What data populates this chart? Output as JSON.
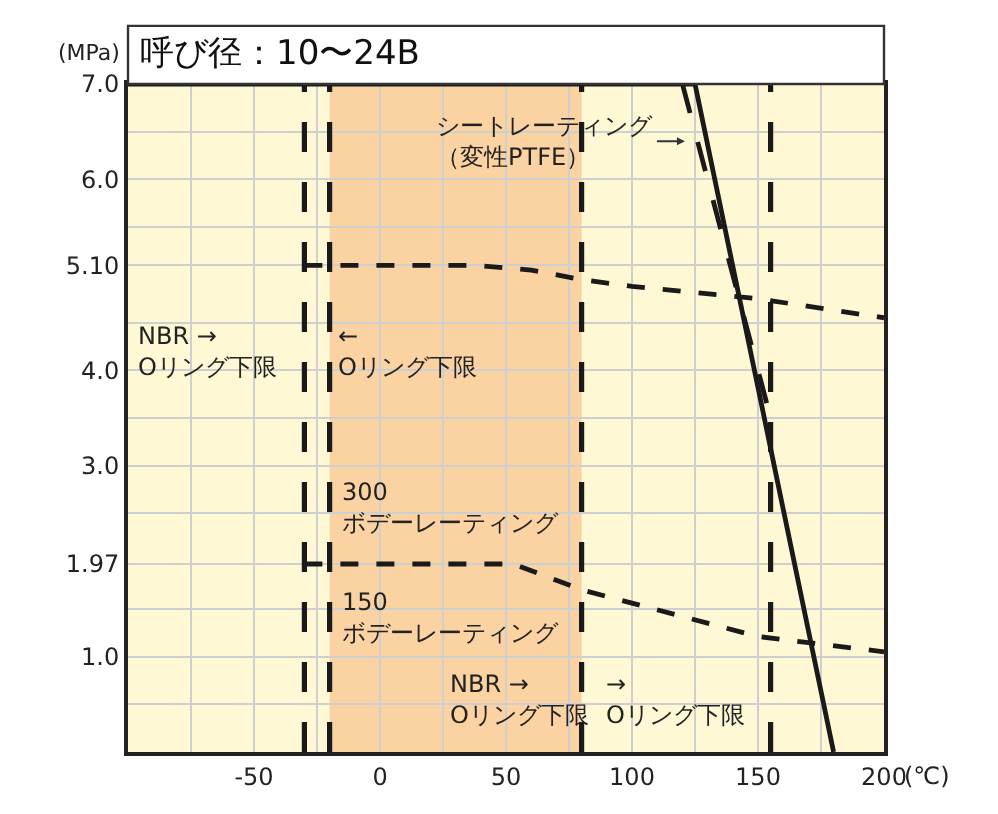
{
  "chart_data": {
    "type": "line",
    "title": "呼び径：10〜24B",
    "ylabel": "(MPa)",
    "xlabel": "(℃)",
    "xlim": [
      -100,
      200
    ],
    "ylim": [
      0,
      7
    ],
    "xticks": [
      {
        "value": -75,
        "label": null
      },
      -50,
      {
        "value": -25,
        "label": null
      },
      0,
      {
        "value": 25,
        "label": null
      },
      50,
      {
        "value": 75,
        "label": null
      },
      100,
      {
        "value": 125,
        "label": null
      },
      150,
      {
        "value": 175,
        "label": null
      },
      200
    ],
    "yticks": [
      {
        "value": 0.5,
        "label": null
      },
      {
        "value": 1,
        "label": "1.0"
      },
      {
        "value": 1.5,
        "label": null
      },
      1.97,
      {
        "value": 2.5,
        "label": null
      },
      {
        "value": 3,
        "label": "3.0"
      },
      {
        "value": 3.5,
        "label": null
      },
      {
        "value": 4,
        "label": "4.0"
      },
      {
        "value": 4.5,
        "label": null
      },
      {
        "value": 5.1,
        "label": "5.10"
      },
      {
        "value": 5.5,
        "label": null
      },
      {
        "value": 6,
        "label": "6.0"
      },
      {
        "value": 6.5,
        "label": null
      },
      {
        "value": 7,
        "label": "7.0"
      }
    ],
    "bands": [
      {
        "axis": "x",
        "from": -20,
        "to": 80,
        "color": "#fbd3a3"
      }
    ],
    "grid": true,
    "marker": "none",
    "series": [
      {
        "color": "#1a1a1a",
        "line_style": "solid",
        "x": [
          -100,
          125,
          180
        ],
        "values": [
          7,
          7,
          0
        ]
      },
      {
        "color": "#1a1a1a",
        "line_style": "dashed",
        "x": [
          120,
          155
        ],
        "values": [
          7,
          3.5
        ]
      },
      {
        "color": "#1a1a1a",
        "line_style": "dotted",
        "x": [
          -30,
          38,
          60,
          80,
          100,
          150,
          200
        ],
        "values": [
          5.1,
          5.1,
          5.05,
          4.95,
          4.88,
          4.75,
          4.55
        ]
      },
      {
        "color": "#1a1a1a",
        "line_style": "dotted",
        "x": [
          -30,
          53,
          80,
          150,
          200
        ],
        "values": [
          1.97,
          1.97,
          1.7,
          1.21,
          1.05
        ]
      }
    ],
    "ref_lines": [
      {
        "axis": "x",
        "value": -30,
        "line_style": "dashed",
        "color": "#1a1a1a"
      },
      {
        "axis": "x",
        "value": -20,
        "line_style": "dashed",
        "color": "#1a1a1a"
      },
      {
        "axis": "x",
        "value": 80,
        "line_style": "dashed",
        "color": "#1a1a1a"
      },
      {
        "axis": "x",
        "value": 155,
        "line_style": "dashed",
        "color": "#1a1a1a"
      }
    ],
    "annotations": [
      {
        "text": "シートレーティング（変性PTFE）",
        "x": 121,
        "y": 6.4
      },
      "NBR →\nOリング下限",
      "←\nOリング下限",
      "300\nボデーレーティング",
      "150\nボデーレーティング",
      "NBR →\nOリング下限",
      "→\nOリング下限"
    ]
  }
}
